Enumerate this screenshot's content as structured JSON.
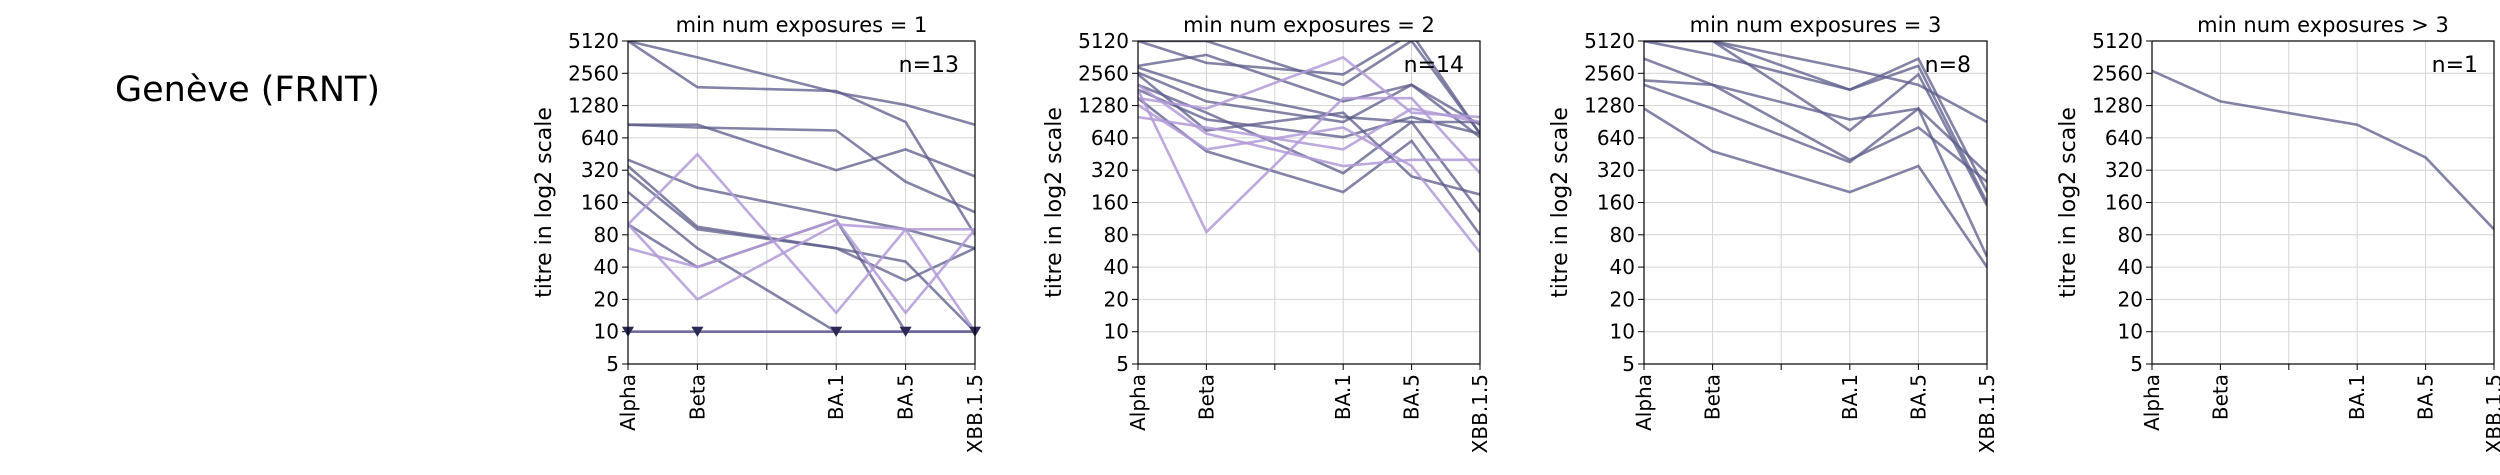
{
  "page_title": "Genève (FRNT)",
  "colors": {
    "dark": "#5a5a8a",
    "light": "#b39ad8",
    "marker": "#2a2a55",
    "grid": "#d4d4d4"
  },
  "chart_data": [
    {
      "type": "line",
      "title": "min num exposures = 1",
      "annotation": "n=13",
      "ylabel": "titre in log2 scale",
      "yscale": "log2",
      "ylim": [
        5,
        5120
      ],
      "yticks": [
        5,
        10,
        20,
        40,
        80,
        160,
        320,
        640,
        1280,
        2560,
        5120
      ],
      "categories": [
        "Alpha",
        "Beta",
        "BA.1",
        "BA.5",
        "XBB.1.5"
      ],
      "x_positions": [
        0,
        1,
        3,
        4,
        5
      ],
      "x_gridlines": [
        0,
        1,
        2,
        3,
        4,
        5
      ],
      "series": [
        {
          "tone": "dark",
          "values": [
            5120,
            3600,
            1700,
            1300,
            850
          ]
        },
        {
          "tone": "dark",
          "values": [
            5120,
            1900,
            1750,
            900,
            80
          ]
        },
        {
          "tone": "dark",
          "values": [
            850,
            800,
            750,
            250,
            130
          ]
        },
        {
          "tone": "dark",
          "values": [
            850,
            850,
            320,
            500,
            280
          ]
        },
        {
          "tone": "dark",
          "values": [
            400,
            220,
            120,
            90,
            60
          ]
        },
        {
          "tone": "dark",
          "values": [
            350,
            95,
            60,
            45,
            10
          ]
        },
        {
          "tone": "dark",
          "values": [
            300,
            90,
            60,
            30,
            60
          ]
        },
        {
          "tone": "dark",
          "values": [
            200,
            60,
            10,
            10,
            10
          ]
        },
        {
          "tone": "dark",
          "values": [
            100,
            40,
            110,
            10,
            10
          ]
        },
        {
          "tone": "light",
          "values": [
            60,
            40,
            110,
            15,
            90
          ]
        },
        {
          "tone": "light",
          "values": [
            100,
            20,
            100,
            90,
            90
          ]
        },
        {
          "tone": "light",
          "values": [
            100,
            450,
            15,
            90,
            10
          ]
        },
        {
          "tone": "light",
          "values": [
            10,
            10,
            10,
            10,
            10
          ],
          "markers": true
        },
        {
          "tone": "dark",
          "values": [
            10,
            10,
            10,
            10,
            10
          ],
          "markers": true
        }
      ]
    },
    {
      "type": "line",
      "title": "min num exposures = 2",
      "annotation": "n=14",
      "ylabel": "titre in log2 scale",
      "yscale": "log2",
      "ylim": [
        5,
        5120
      ],
      "yticks": [
        5,
        10,
        20,
        40,
        80,
        160,
        320,
        640,
        1280,
        2560,
        5120
      ],
      "categories": [
        "Alpha",
        "Beta",
        "BA.1",
        "BA.5",
        "XBB.1.5"
      ],
      "x_positions": [
        0,
        1,
        3,
        4,
        5
      ],
      "x_gridlines": [
        0,
        1,
        2,
        3,
        4,
        5
      ],
      "series": [
        {
          "tone": "dark",
          "values": [
            5120,
            3200,
            2500,
            6000,
            700
          ]
        },
        {
          "tone": "dark",
          "values": [
            5120,
            5120,
            2000,
            5120,
            700
          ]
        },
        {
          "tone": "dark",
          "values": [
            3000,
            3800,
            1400,
            2000,
            850
          ]
        },
        {
          "tone": "dark",
          "values": [
            2900,
            1800,
            1000,
            900,
            900
          ]
        },
        {
          "tone": "dark",
          "values": [
            2600,
            1400,
            900,
            2000,
            650
          ]
        },
        {
          "tone": "dark",
          "values": [
            2000,
            1100,
            300,
            900,
            130
          ]
        },
        {
          "tone": "dark",
          "values": [
            1800,
            950,
            650,
            1000,
            700
          ]
        },
        {
          "tone": "dark",
          "values": [
            1500,
            480,
            200,
            600,
            80
          ]
        },
        {
          "tone": "dark",
          "values": [
            2500,
            750,
            1100,
            280,
            190
          ]
        },
        {
          "tone": "light",
          "values": [
            1800,
            85,
            1500,
            1500,
            300
          ]
        },
        {
          "tone": "light",
          "values": [
            1300,
            500,
            800,
            350,
            55
          ]
        },
        {
          "tone": "light",
          "values": [
            1000,
            800,
            500,
            1200,
            900
          ]
        },
        {
          "tone": "light",
          "values": [
            2000,
            700,
            350,
            400,
            400
          ]
        },
        {
          "tone": "light",
          "values": [
            1500,
            1200,
            3600,
            1100,
            1000
          ]
        }
      ]
    },
    {
      "type": "line",
      "title": "min num exposures = 3",
      "annotation": "n=8",
      "ylabel": "titre in log2 scale",
      "yscale": "log2",
      "ylim": [
        5,
        5120
      ],
      "yticks": [
        5,
        10,
        20,
        40,
        80,
        160,
        320,
        640,
        1280,
        2560,
        5120
      ],
      "categories": [
        "Alpha",
        "Beta",
        "BA.1",
        "BA.5",
        "XBB.1.5"
      ],
      "x_positions": [
        0,
        1,
        3,
        4,
        5
      ],
      "x_gridlines": [
        0,
        1,
        2,
        3,
        4,
        5
      ],
      "series": [
        {
          "tone": "dark",
          "values": [
            5120,
            5120,
            2800,
            2000,
            900
          ]
        },
        {
          "tone": "dark",
          "values": [
            5120,
            5120,
            1800,
            3500,
            200
          ]
        },
        {
          "tone": "dark",
          "values": [
            5120,
            3800,
            1800,
            3000,
            160
          ]
        },
        {
          "tone": "dark",
          "values": [
            3500,
            2000,
            950,
            1200,
            300
          ]
        },
        {
          "tone": "dark",
          "values": [
            2200,
            2000,
            400,
            800,
            250
          ]
        },
        {
          "tone": "dark",
          "values": [
            2000,
            1200,
            380,
            1200,
            50
          ]
        },
        {
          "tone": "dark",
          "values": [
            1200,
            480,
            200,
            350,
            40
          ]
        },
        {
          "tone": "dark",
          "values": [
            5120,
            5120,
            750,
            2500,
            150
          ]
        }
      ]
    },
    {
      "type": "line",
      "title": "min num exposures > 3",
      "annotation": "n=1",
      "ylabel": "titre in log2 scale",
      "yscale": "log2",
      "ylim": [
        5,
        5120
      ],
      "yticks": [
        5,
        10,
        20,
        40,
        80,
        160,
        320,
        640,
        1280,
        2560,
        5120
      ],
      "categories": [
        "Alpha",
        "Beta",
        "BA.1",
        "BA.5",
        "XBB.1.5"
      ],
      "x_positions": [
        0,
        1,
        3,
        4,
        5
      ],
      "x_gridlines": [
        0,
        1,
        2,
        3,
        4,
        5
      ],
      "series": [
        {
          "tone": "dark",
          "values": [
            2700,
            1400,
            850,
            420,
            90
          ]
        }
      ]
    }
  ]
}
